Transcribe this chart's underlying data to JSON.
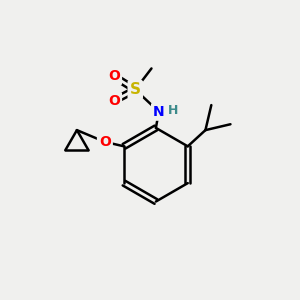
{
  "background_color": "#f0f0ee",
  "bond_color": "#000000",
  "bond_width": 1.8,
  "atom_colors": {
    "S": "#c8b400",
    "O": "#ff0000",
    "N": "#0000ff",
    "H": "#3d8b8b",
    "C": "#000000"
  },
  "font_size": 10
}
